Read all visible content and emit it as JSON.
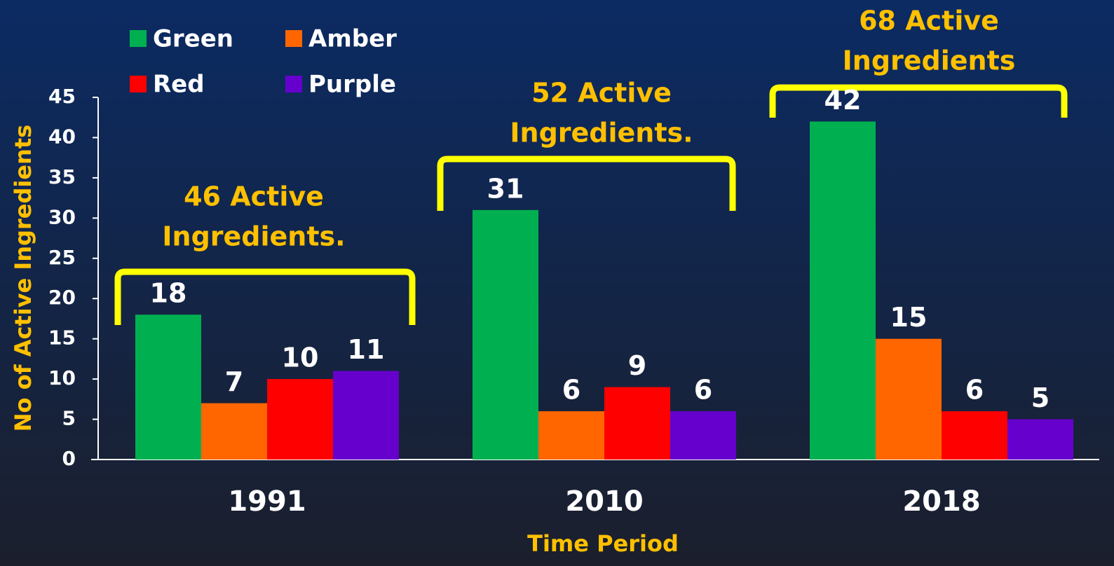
{
  "chart_data": {
    "type": "bar",
    "y_axis_label": "No of Active Ingredients",
    "x_axis_label": "Time Period",
    "categories": [
      "1991",
      "2010",
      "2018"
    ],
    "series": [
      {
        "name": "Green",
        "color": "#00b050",
        "values": [
          18,
          31,
          42
        ]
      },
      {
        "name": "Amber",
        "color": "#ff6600",
        "values": [
          7,
          6,
          15
        ]
      },
      {
        "name": "Red",
        "color": "#ff0000",
        "values": [
          10,
          9,
          6
        ]
      },
      {
        "name": "Purple",
        "color": "#6600cc",
        "values": [
          11,
          6,
          5
        ]
      }
    ],
    "ylim": [
      0,
      45
    ],
    "yticks": [
      0,
      5,
      10,
      15,
      20,
      25,
      30,
      35,
      40,
      45
    ],
    "grid": false,
    "legend": "top-left",
    "annotations": [
      [
        "46 Active",
        "Ingredients."
      ],
      [
        "52 Active",
        "Ingredients."
      ],
      [
        "68 Active",
        "Ingredients"
      ]
    ]
  }
}
